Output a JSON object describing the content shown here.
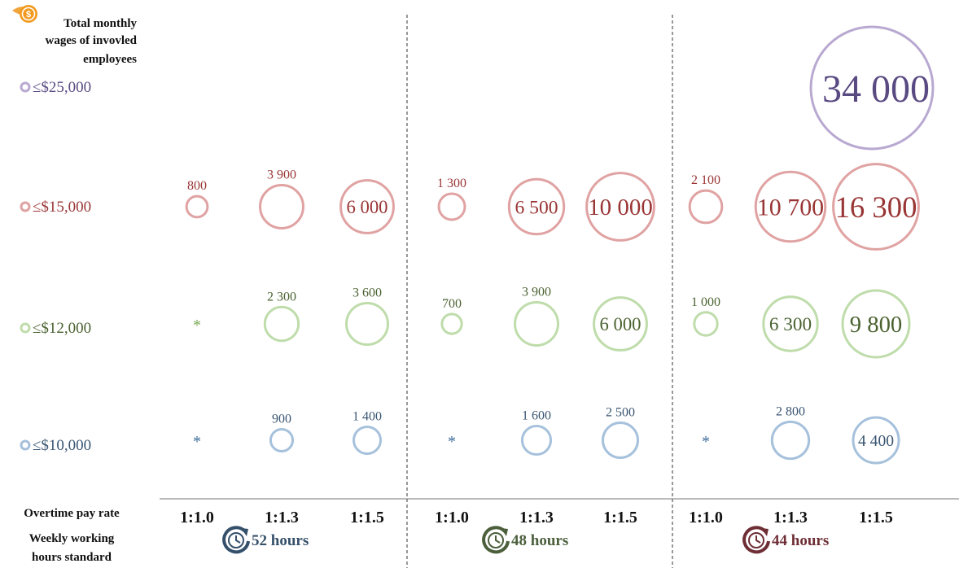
{
  "legend": {
    "title_lines": [
      "Total monthly",
      "wages of invovled",
      "employees"
    ],
    "icon": "dollar-coin-icon"
  },
  "footer": {
    "rate_label": "Overtime pay rate",
    "hours_label_lines": [
      "Weekly working",
      "hours standard"
    ],
    "clock_icon": "clock-refresh-icon"
  },
  "chart_data": {
    "type": "bubble",
    "title": "",
    "x_groups": [
      {
        "label": "52 hours",
        "color": "#35506b",
        "rates": [
          "1:1.0",
          "1:1.3",
          "1:1.5"
        ]
      },
      {
        "label": "48 hours",
        "color": "#4b5f3c",
        "rates": [
          "1:1.0",
          "1:1.3",
          "1:1.5"
        ]
      },
      {
        "label": "44 hours",
        "color": "#6e2e35",
        "rates": [
          "1:1.0",
          "1:1.3",
          "1:1.5"
        ]
      }
    ],
    "wage_tiers": [
      {
        "label": "≤$25,000",
        "stroke": "#b9a9d1",
        "text": "#5a4a82"
      },
      {
        "label": "≤$15,000",
        "stroke": "#e0a2a2",
        "text": "#9a3535"
      },
      {
        "label": "≤$12,000",
        "stroke": "#bfdcab",
        "text": "#4a6230"
      },
      {
        "label": "≤$10,000",
        "stroke": "#a6c1dc",
        "text": "#3a5572"
      }
    ],
    "points": [
      {
        "tier": 0,
        "group": 2,
        "rate": 2,
        "value": 34000,
        "label": "34 000"
      },
      {
        "tier": 1,
        "group": 0,
        "rate": 0,
        "value": 800,
        "label": "800"
      },
      {
        "tier": 1,
        "group": 0,
        "rate": 1,
        "value": 3900,
        "label": "3 900"
      },
      {
        "tier": 1,
        "group": 0,
        "rate": 2,
        "value": 6000,
        "label": "6 000"
      },
      {
        "tier": 1,
        "group": 1,
        "rate": 0,
        "value": 1300,
        "label": "1 300"
      },
      {
        "tier": 1,
        "group": 1,
        "rate": 1,
        "value": 6500,
        "label": "6 500"
      },
      {
        "tier": 1,
        "group": 1,
        "rate": 2,
        "value": 10000,
        "label": "10 000"
      },
      {
        "tier": 1,
        "group": 2,
        "rate": 0,
        "value": 2100,
        "label": "2 100"
      },
      {
        "tier": 1,
        "group": 2,
        "rate": 1,
        "value": 10700,
        "label": "10 700"
      },
      {
        "tier": 1,
        "group": 2,
        "rate": 2,
        "value": 16300,
        "label": "16 300"
      },
      {
        "tier": 2,
        "group": 0,
        "rate": 0,
        "value": null,
        "label": "*"
      },
      {
        "tier": 2,
        "group": 0,
        "rate": 1,
        "value": 2300,
        "label": "2 300"
      },
      {
        "tier": 2,
        "group": 0,
        "rate": 2,
        "value": 3600,
        "label": "3 600"
      },
      {
        "tier": 2,
        "group": 1,
        "rate": 0,
        "value": 700,
        "label": "700"
      },
      {
        "tier": 2,
        "group": 1,
        "rate": 1,
        "value": 3900,
        "label": "3 900"
      },
      {
        "tier": 2,
        "group": 1,
        "rate": 2,
        "value": 6000,
        "label": "6 000"
      },
      {
        "tier": 2,
        "group": 2,
        "rate": 0,
        "value": 1000,
        "label": "1 000"
      },
      {
        "tier": 2,
        "group": 2,
        "rate": 1,
        "value": 6300,
        "label": "6 300"
      },
      {
        "tier": 2,
        "group": 2,
        "rate": 2,
        "value": 9800,
        "label": "9 800"
      },
      {
        "tier": 3,
        "group": 0,
        "rate": 0,
        "value": null,
        "label": "*"
      },
      {
        "tier": 3,
        "group": 0,
        "rate": 1,
        "value": 900,
        "label": "900"
      },
      {
        "tier": 3,
        "group": 0,
        "rate": 2,
        "value": 1400,
        "label": "1 400"
      },
      {
        "tier": 3,
        "group": 1,
        "rate": 0,
        "value": null,
        "label": "*"
      },
      {
        "tier": 3,
        "group": 1,
        "rate": 1,
        "value": 1600,
        "label": "1 600"
      },
      {
        "tier": 3,
        "group": 1,
        "rate": 2,
        "value": 2500,
        "label": "2 500"
      },
      {
        "tier": 3,
        "group": 2,
        "rate": 0,
        "value": null,
        "label": "*"
      },
      {
        "tier": 3,
        "group": 2,
        "rate": 1,
        "value": 2800,
        "label": "2 800"
      },
      {
        "tier": 3,
        "group": 2,
        "rate": 2,
        "value": 4400,
        "label": "4 400"
      }
    ]
  }
}
